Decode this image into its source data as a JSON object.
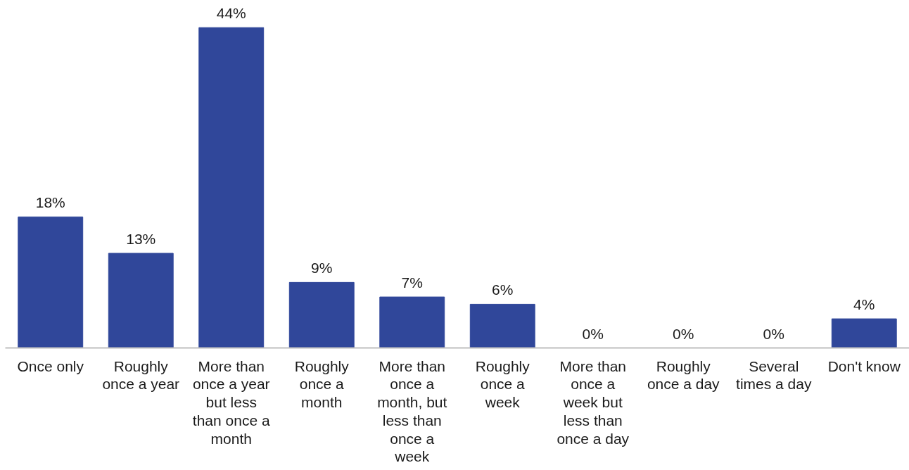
{
  "chart_data": {
    "type": "bar",
    "categories": [
      "Once only",
      "Roughly once a year",
      "More than once a year but less than once a month",
      "Roughly once a month",
      "More than once a month, but less than once a week",
      "Roughly once a week",
      "More than once a week but less than once a day",
      "Roughly once a day",
      "Several times a day",
      "Don't know"
    ],
    "values": [
      18,
      13,
      44,
      9,
      7,
      6,
      0,
      0,
      0,
      4
    ],
    "value_labels": [
      "18%",
      "13%",
      "44%",
      "9%",
      "7%",
      "6%",
      "0%",
      "0%",
      "0%",
      "4%"
    ],
    "color": "#30479a",
    "tick_labels": "x",
    "grid": false
  }
}
